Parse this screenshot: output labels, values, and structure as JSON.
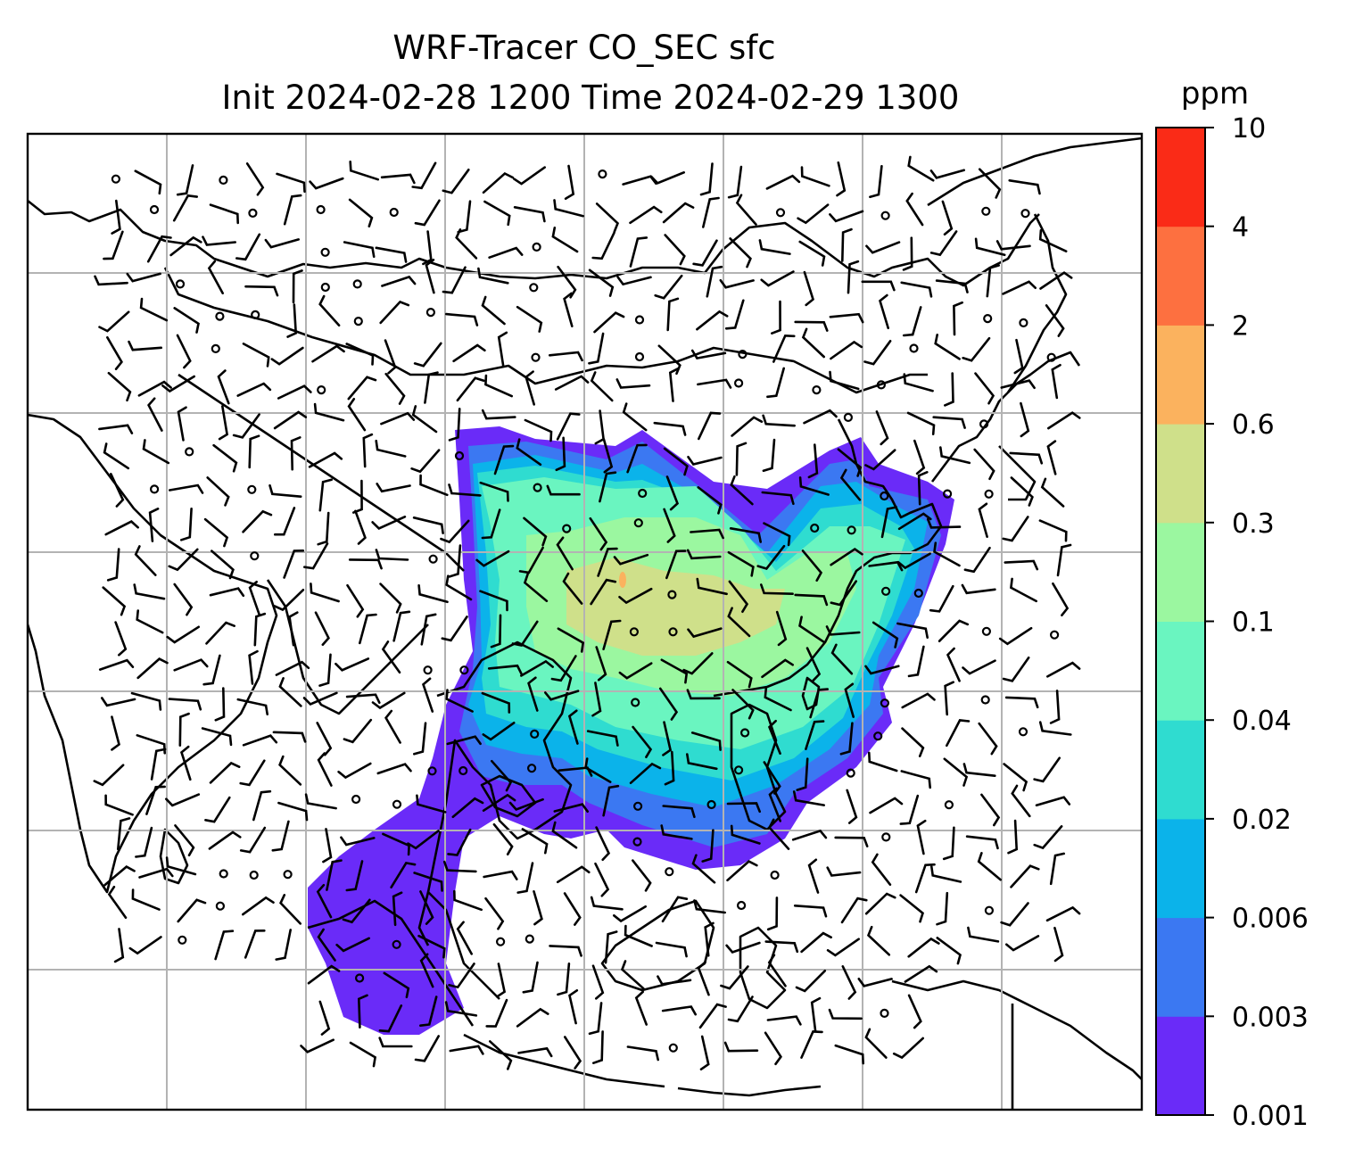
{
  "title": {
    "line1": "WRF-Tracer CO_SEC sfc",
    "line2": "Init 2024-02-28 1200 Time 2024-02-29 1300"
  },
  "colorbar": {
    "unit": "ppm",
    "levels": [
      "0.001",
      "0.003",
      "0.006",
      "0.02",
      "0.04",
      "0.1",
      "0.3",
      "0.6",
      "2",
      "4",
      "10"
    ],
    "colors": [
      "#6a2bf8",
      "#3b78f2",
      "#0bb3ea",
      "#2fdcd0",
      "#6af5c0",
      "#9bf7a0",
      "#cfe08a",
      "#fbb25e",
      "#fd7040",
      "#fa2b17"
    ]
  },
  "map": {
    "gridlines": true,
    "wind_barbs": true,
    "field": "CO_SEC surface tracer concentration"
  }
}
